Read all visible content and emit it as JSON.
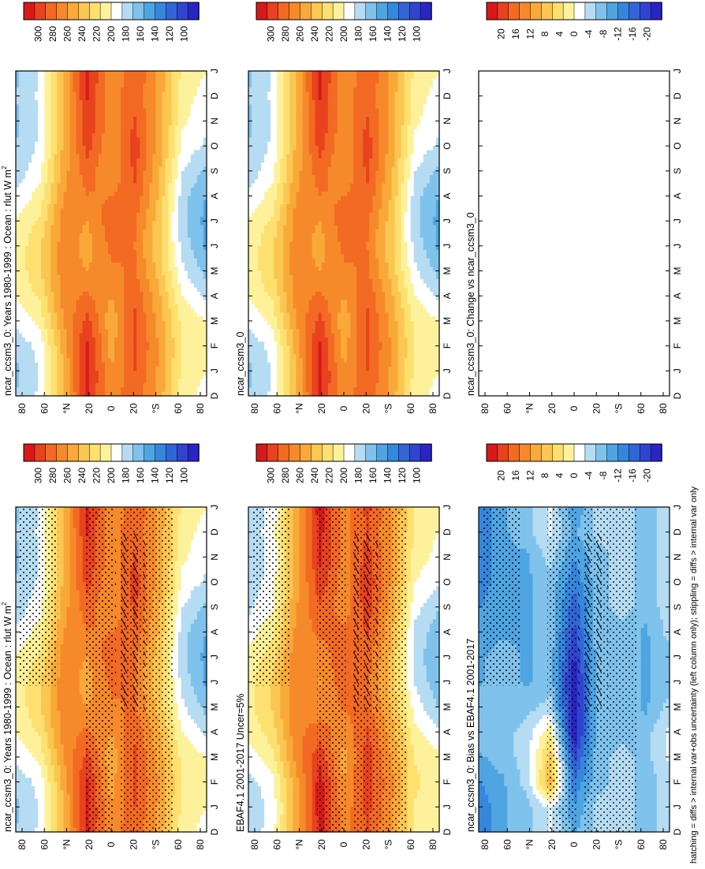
{
  "figure_footer": "hatching = diffs > internal var+obs uncertainty (left column only); stippling = diffs > internal var only",
  "month_ticks": [
    "D",
    "J",
    "F",
    "M",
    "A",
    "M",
    "J",
    "J",
    "A",
    "S",
    "O",
    "N",
    "D",
    "J"
  ],
  "lat_ticks": [
    "80",
    "60",
    "°N",
    "20",
    "0",
    "20",
    "°S",
    "60",
    "80"
  ],
  "colorbars": {
    "absolute": {
      "labels": [
        "300",
        "280",
        "260",
        "240",
        "220",
        "200",
        "180",
        "160",
        "140",
        "120",
        "100"
      ],
      "colors": [
        "#d7191c",
        "#e8421f",
        "#f26a23",
        "#f68a2a",
        "#f9a939",
        "#fbc651",
        "#fde070",
        "#fdf29b",
        "#ffffff",
        "#b5dcf3",
        "#7fc2ec",
        "#4ea5e2",
        "#3587de",
        "#3266d6",
        "#2f45cf",
        "#2a24c5"
      ]
    },
    "difference": {
      "labels": [
        "20",
        "16",
        "12",
        "8",
        "4",
        "0",
        "-4",
        "-8",
        "-12",
        "-16",
        "-20"
      ],
      "colors": [
        "#d7191c",
        "#e8421f",
        "#f26a23",
        "#f68a2a",
        "#f9a939",
        "#fbc651",
        "#fde070",
        "#fdf29b",
        "#ffffff",
        "#b5dcf3",
        "#7fc2ec",
        "#4ea5e2",
        "#3587de",
        "#3266d6",
        "#2f45cf",
        "#2a24c5"
      ]
    }
  },
  "panels": [
    {
      "id": "p1",
      "title": "ncar_ccsm3_0: Years 1980-1999 : Ocean : rlut W m",
      "superscript": "2",
      "kind": "absolute",
      "stipple": true,
      "hatch": true,
      "colorbar": "absolute"
    },
    {
      "id": "p2",
      "title": "ncar_ccsm3_0: Years 1980-1999 : Ocean : rlut W m",
      "superscript": "2",
      "kind": "absolute",
      "stipple": false,
      "hatch": false,
      "colorbar": "absolute"
    },
    {
      "id": "p3",
      "title": "EBAF4.1 2001-2017 Uncer=5%",
      "superscript": "",
      "kind": "absolute",
      "stipple": true,
      "hatch": true,
      "colorbar": "absolute"
    },
    {
      "id": "p4",
      "title": "ncar_ccsm3_0",
      "superscript": "",
      "kind": "absolute",
      "stipple": false,
      "hatch": false,
      "colorbar": "absolute"
    },
    {
      "id": "p5",
      "title": "ncar_ccsm3_0: Bias vs EBAF4.1 2001-2017",
      "superscript": "",
      "kind": "bias",
      "stipple": true,
      "hatch": true,
      "colorbar": "difference"
    },
    {
      "id": "p6",
      "title": "ncar_ccsm3_0: Change vs ncar_ccsm3_0",
      "superscript": "",
      "kind": "empty",
      "stipple": false,
      "hatch": false,
      "colorbar": "difference"
    }
  ],
  "chart_data": [
    {
      "type": "heatmap",
      "title": "ncar_ccsm3_0: Years 1980-1999 : Ocean : rlut W m-2",
      "xlabel": "month",
      "ylabel": "latitude",
      "x": [
        "D",
        "J",
        "F",
        "M",
        "A",
        "M",
        "J",
        "J",
        "A",
        "S",
        "O",
        "N",
        "D",
        "J"
      ],
      "y": [
        -80,
        -60,
        -40,
        -20,
        0,
        20,
        40,
        60,
        80
      ],
      "rows_lat": [
        80,
        60,
        40,
        20,
        0,
        -20,
        -40,
        -60,
        -80
      ],
      "values": [
        [
          175,
          172,
          178,
          190,
          200,
          205,
          205,
          200,
          190,
          180,
          175,
          172,
          175,
          172
        ],
        [
          190,
          188,
          192,
          205,
          215,
          222,
          222,
          215,
          205,
          195,
          190,
          188,
          190,
          188
        ],
        [
          240,
          238,
          242,
          250,
          255,
          258,
          258,
          255,
          250,
          245,
          240,
          238,
          240,
          238
        ],
        [
          288,
          292,
          290,
          280,
          265,
          250,
          245,
          250,
          262,
          270,
          280,
          286,
          288,
          292
        ],
        [
          255,
          250,
          245,
          240,
          250,
          260,
          266,
          270,
          262,
          250,
          250,
          254,
          255,
          250
        ],
        [
          272,
          275,
          278,
          278,
          272,
          265,
          262,
          265,
          272,
          278,
          282,
          276,
          272,
          275
        ],
        [
          245,
          248,
          250,
          245,
          240,
          232,
          228,
          230,
          236,
          240,
          244,
          246,
          245,
          248
        ],
        [
          205,
          208,
          210,
          208,
          200,
          190,
          182,
          178,
          180,
          188,
          196,
          202,
          205,
          208
        ],
        [
          195,
          200,
          205,
          200,
          185,
          170,
          160,
          158,
          162,
          172,
          185,
          192,
          195,
          200
        ]
      ],
      "zlim": [
        100,
        300
      ]
    },
    {
      "type": "heatmap",
      "title": "ncar_ccsm3_0: Bias vs EBAF4.1 2001-2017",
      "xlabel": "month",
      "ylabel": "latitude",
      "x": [
        "D",
        "J",
        "F",
        "M",
        "A",
        "M",
        "J",
        "J",
        "A",
        "S",
        "O",
        "N",
        "D",
        "J"
      ],
      "y": [
        -80,
        -60,
        -40,
        -20,
        0,
        20,
        40,
        60,
        80
      ],
      "rows_lat": [
        80,
        60,
        40,
        20,
        0,
        -20,
        -40,
        -60,
        -80
      ],
      "values": [
        [
          -12,
          -12,
          -10,
          -8,
          -6,
          -6,
          -8,
          -8,
          -10,
          -10,
          -12,
          -12,
          -12,
          -12
        ],
        [
          -8,
          -8,
          -8,
          -6,
          -6,
          -6,
          -6,
          -6,
          -8,
          -8,
          -8,
          -8,
          -8,
          -8
        ],
        [
          -6,
          -6,
          -4,
          -4,
          -4,
          -6,
          -8,
          -8,
          -8,
          -8,
          -8,
          -8,
          -6,
          -6
        ],
        [
          -2,
          -2,
          8,
          6,
          2,
          -4,
          -6,
          -6,
          -6,
          -6,
          -6,
          -4,
          -2,
          -2
        ],
        [
          -8,
          -10,
          -12,
          -16,
          -20,
          -20,
          -20,
          -18,
          -16,
          -14,
          -12,
          -10,
          -8,
          -10
        ],
        [
          -4,
          -4,
          -6,
          -6,
          -6,
          -6,
          -6,
          -6,
          -6,
          -6,
          -6,
          -6,
          -4,
          -4
        ],
        [
          -4,
          -4,
          -4,
          -4,
          -6,
          -6,
          -6,
          -6,
          -6,
          -4,
          -4,
          -4,
          -4,
          -4
        ],
        [
          -6,
          -6,
          -6,
          -6,
          -6,
          -8,
          -8,
          -8,
          -8,
          -6,
          -6,
          -6,
          -6,
          -6
        ],
        [
          -4,
          -4,
          -4,
          -2,
          -2,
          -4,
          -6,
          -6,
          -4,
          -4,
          -4,
          -4,
          -4,
          -4
        ]
      ],
      "zlim": [
        -20,
        20
      ]
    },
    {
      "type": "heatmap",
      "title": "ncar_ccsm3_0: Change vs ncar_ccsm3_0",
      "values": []
    }
  ]
}
